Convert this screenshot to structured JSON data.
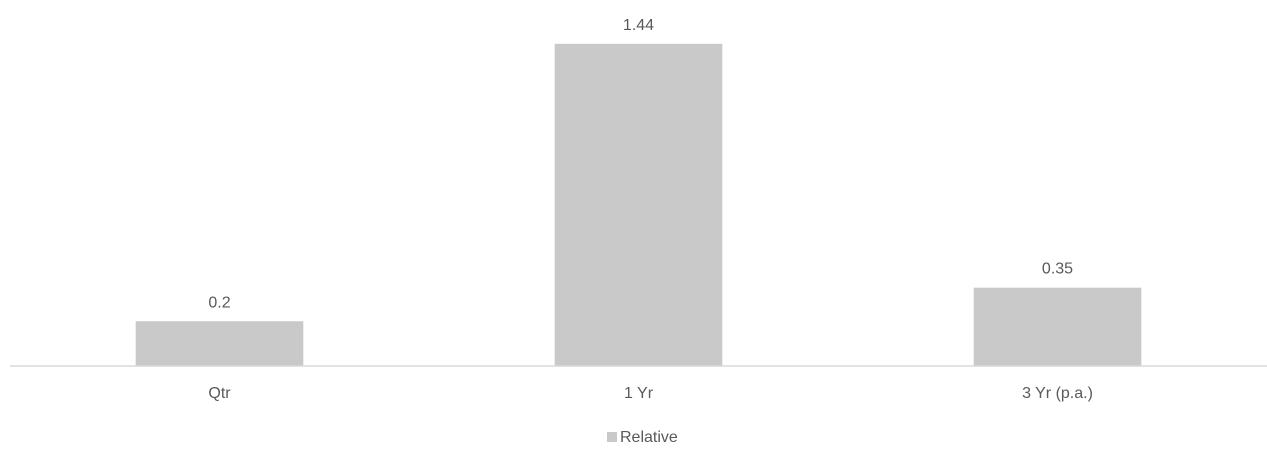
{
  "chart_data": {
    "type": "bar",
    "categories": [
      "Qtr",
      "1 Yr",
      "3 Yr (p.a.)"
    ],
    "series": [
      {
        "name": "Relative",
        "values": [
          0.2,
          1.44,
          0.35
        ],
        "color": "#c9c9c9"
      }
    ],
    "data_labels": [
      "0.2",
      "1.44",
      "0.35"
    ],
    "ylim": [
      0,
      1.6
    ],
    "grid": false,
    "legend": {
      "position": "bottom",
      "entries": [
        "Relative"
      ]
    },
    "colors": {
      "bar": "#c9c9c9",
      "axis": "#d9d9d9",
      "text": "#595959"
    }
  }
}
